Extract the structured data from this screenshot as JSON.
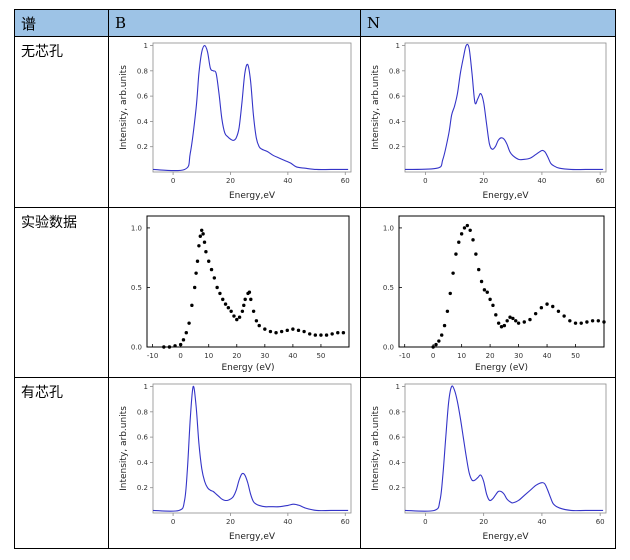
{
  "table": {
    "header": {
      "col0": "谱",
      "col1": "B",
      "col2": "N"
    },
    "rows": [
      {
        "label": "无芯孔"
      },
      {
        "label": "实验数据"
      },
      {
        "label": "有芯孔"
      }
    ]
  },
  "chart_data": [
    {
      "id": "calc-no-hole-B",
      "type": "line",
      "xlabel": "Energy,eV",
      "ylabel": "Intensity, arb.units",
      "xlim": [
        -7,
        62
      ],
      "ylim": [
        0,
        1.02
      ],
      "xticks": [
        0,
        20,
        40,
        60
      ],
      "yticks": [
        0.2,
        0.4,
        0.6,
        0.8,
        1
      ],
      "color": "#3434c8",
      "x": [
        -7,
        4,
        6,
        8,
        9,
        10,
        11,
        12,
        13,
        14,
        15,
        16,
        17,
        18,
        19,
        20,
        21,
        22,
        23,
        24,
        25,
        26,
        27,
        28,
        29,
        30,
        31,
        32,
        33,
        35,
        37,
        39,
        41,
        43,
        46,
        50,
        55,
        61
      ],
      "y": [
        0.02,
        0.02,
        0.15,
        0.5,
        0.78,
        0.95,
        1.0,
        0.95,
        0.82,
        0.8,
        0.78,
        0.62,
        0.42,
        0.31,
        0.28,
        0.26,
        0.25,
        0.27,
        0.35,
        0.55,
        0.78,
        0.85,
        0.72,
        0.45,
        0.27,
        0.2,
        0.18,
        0.17,
        0.16,
        0.13,
        0.11,
        0.09,
        0.07,
        0.04,
        0.03,
        0.02,
        0.02,
        0.02
      ]
    },
    {
      "id": "calc-no-hole-N",
      "type": "line",
      "xlabel": "Energy,eV",
      "ylabel": "Intensity, arb.units",
      "xlim": [
        -7,
        62
      ],
      "ylim": [
        0,
        1.02
      ],
      "xticks": [
        0,
        20,
        40,
        60
      ],
      "yticks": [
        0.2,
        0.4,
        0.6,
        0.8,
        1
      ],
      "color": "#3434c8",
      "x": [
        -7,
        4,
        6,
        8,
        9,
        10,
        11,
        12,
        13,
        14,
        15,
        16,
        17,
        18,
        19,
        20,
        21,
        22,
        23,
        24,
        25,
        26,
        27,
        28,
        29,
        30,
        32,
        34,
        36,
        38,
        40,
        41,
        42,
        43,
        44,
        46,
        50,
        55,
        61
      ],
      "y": [
        0.02,
        0.03,
        0.1,
        0.3,
        0.45,
        0.52,
        0.62,
        0.78,
        0.9,
        1.0,
        0.98,
        0.78,
        0.55,
        0.58,
        0.62,
        0.55,
        0.38,
        0.22,
        0.18,
        0.2,
        0.25,
        0.27,
        0.26,
        0.22,
        0.16,
        0.13,
        0.1,
        0.1,
        0.11,
        0.14,
        0.17,
        0.16,
        0.12,
        0.07,
        0.05,
        0.03,
        0.02,
        0.02,
        0.02
      ]
    },
    {
      "id": "exp-B",
      "type": "scatter",
      "xlabel": "Energy (eV)",
      "ylabel": "",
      "xlim": [
        -12,
        60
      ],
      "ylim": [
        0,
        1.1
      ],
      "xticks": [
        -10,
        0,
        10,
        20,
        30,
        40,
        50
      ],
      "yticks": [
        0.0,
        0.5,
        1.0
      ],
      "ytick_labels": [
        "0.0",
        "0.5",
        "1.0"
      ],
      "color": "#000000",
      "x": [
        -6,
        -4,
        -2,
        0,
        1,
        2,
        3,
        4,
        5,
        5.5,
        6,
        6.5,
        7,
        7.5,
        8,
        8.5,
        9,
        10,
        11,
        12,
        13,
        14,
        15,
        16,
        17,
        18,
        19,
        20,
        21,
        22,
        22.5,
        23,
        24,
        24.5,
        25,
        26,
        27,
        28,
        30,
        32,
        34,
        36,
        38,
        40,
        42,
        44,
        46,
        48,
        50,
        52,
        54,
        56,
        58
      ],
      "y": [
        0.0,
        0.0,
        0.01,
        0.02,
        0.06,
        0.12,
        0.2,
        0.35,
        0.5,
        0.62,
        0.72,
        0.85,
        0.93,
        0.98,
        0.95,
        0.88,
        0.8,
        0.72,
        0.65,
        0.58,
        0.5,
        0.45,
        0.4,
        0.36,
        0.33,
        0.3,
        0.26,
        0.23,
        0.25,
        0.3,
        0.35,
        0.4,
        0.45,
        0.46,
        0.4,
        0.3,
        0.22,
        0.18,
        0.15,
        0.13,
        0.12,
        0.13,
        0.14,
        0.15,
        0.14,
        0.13,
        0.11,
        0.1,
        0.1,
        0.1,
        0.11,
        0.12,
        0.12
      ]
    },
    {
      "id": "exp-N",
      "type": "scatter",
      "xlabel": "Energy (eV)",
      "ylabel": "",
      "xlim": [
        -12,
        60
      ],
      "ylim": [
        0,
        1.1
      ],
      "xticks": [
        -10,
        0,
        10,
        20,
        30,
        40,
        50
      ],
      "yticks": [
        0.0,
        0.5,
        1.0
      ],
      "ytick_labels": [
        "0.0",
        "0.5",
        "1.0"
      ],
      "color": "#000000",
      "x": [
        0,
        1,
        2,
        3,
        4,
        5,
        6,
        7,
        8,
        9,
        10,
        11,
        12,
        13,
        14,
        15,
        16,
        17,
        18,
        19,
        20,
        21,
        22,
        23,
        24,
        25,
        26,
        27,
        28,
        29,
        30,
        32,
        34,
        36,
        38,
        40,
        42,
        44,
        46,
        48,
        50,
        52,
        54,
        56,
        58,
        60
      ],
      "y": [
        0.0,
        0.02,
        0.05,
        0.1,
        0.18,
        0.3,
        0.45,
        0.62,
        0.78,
        0.88,
        0.95,
        1.0,
        1.02,
        0.98,
        0.9,
        0.78,
        0.65,
        0.55,
        0.48,
        0.46,
        0.4,
        0.35,
        0.27,
        0.2,
        0.17,
        0.18,
        0.22,
        0.25,
        0.24,
        0.22,
        0.2,
        0.21,
        0.23,
        0.28,
        0.33,
        0.36,
        0.34,
        0.3,
        0.26,
        0.22,
        0.2,
        0.2,
        0.21,
        0.22,
        0.22,
        0.21
      ]
    },
    {
      "id": "calc-hole-B",
      "type": "line",
      "xlabel": "Energy,eV",
      "ylabel": "Intensity, arb.units",
      "xlim": [
        -7,
        62
      ],
      "ylim": [
        0,
        1.02
      ],
      "xticks": [
        0,
        20,
        40,
        60
      ],
      "yticks": [
        0.2,
        0.4,
        0.6,
        0.8,
        1
      ],
      "color": "#3434c8",
      "x": [
        -7,
        2,
        4,
        5,
        6,
        7,
        8,
        9,
        10,
        11,
        12,
        13,
        14,
        15,
        16,
        17,
        18,
        19,
        20,
        21,
        22,
        23,
        24,
        25,
        26,
        27,
        28,
        29,
        30,
        32,
        34,
        37,
        40,
        42,
        44,
        46,
        50,
        55,
        61
      ],
      "y": [
        0.02,
        0.02,
        0.1,
        0.35,
        0.75,
        1.0,
        0.85,
        0.55,
        0.35,
        0.25,
        0.2,
        0.18,
        0.17,
        0.15,
        0.13,
        0.11,
        0.1,
        0.1,
        0.11,
        0.13,
        0.18,
        0.26,
        0.31,
        0.3,
        0.24,
        0.15,
        0.09,
        0.07,
        0.06,
        0.05,
        0.05,
        0.05,
        0.06,
        0.07,
        0.06,
        0.04,
        0.02,
        0.02,
        0.02
      ]
    },
    {
      "id": "calc-hole-N",
      "type": "line",
      "xlabel": "Energy,eV",
      "ylabel": "Intensity, arb.units",
      "xlim": [
        -7,
        62
      ],
      "ylim": [
        0,
        1.02
      ],
      "xticks": [
        0,
        20,
        40,
        60
      ],
      "yticks": [
        0.2,
        0.4,
        0.6,
        0.8,
        1
      ],
      "color": "#3434c8",
      "x": [
        -7,
        3,
        5,
        6,
        7,
        8,
        9,
        10,
        11,
        12,
        13,
        14,
        15,
        16,
        17,
        18,
        19,
        20,
        21,
        22,
        23,
        24,
        25,
        26,
        27,
        28,
        29,
        30,
        32,
        34,
        36,
        38,
        40,
        41,
        42,
        43,
        44,
        46,
        50,
        55,
        61
      ],
      "y": [
        0.02,
        0.02,
        0.1,
        0.3,
        0.6,
        0.88,
        1.0,
        0.97,
        0.88,
        0.75,
        0.6,
        0.45,
        0.32,
        0.26,
        0.26,
        0.28,
        0.3,
        0.25,
        0.15,
        0.1,
        0.11,
        0.14,
        0.17,
        0.17,
        0.15,
        0.11,
        0.09,
        0.08,
        0.1,
        0.14,
        0.18,
        0.22,
        0.24,
        0.23,
        0.18,
        0.12,
        0.07,
        0.04,
        0.02,
        0.02,
        0.02
      ]
    }
  ]
}
